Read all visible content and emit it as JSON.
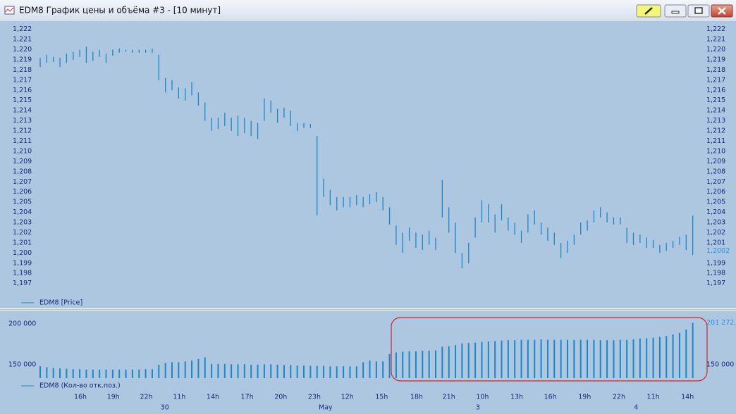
{
  "window": {
    "title": "EDM8 График цены и объёма #3 - [10 минут]"
  },
  "chart_data": [
    {
      "type": "ohlc",
      "legend": "EDM8 [Price]",
      "color": "#1b86c8",
      "ylim": [
        1.1958,
        1.2226
      ],
      "yticks": [
        {
          "value": 1.222,
          "label": "1,222"
        },
        {
          "value": 1.221,
          "label": "1,221"
        },
        {
          "value": 1.22,
          "label": "1,220"
        },
        {
          "value": 1.219,
          "label": "1,219"
        },
        {
          "value": 1.218,
          "label": "1,218"
        },
        {
          "value": 1.217,
          "label": "1,217"
        },
        {
          "value": 1.216,
          "label": "1,216"
        },
        {
          "value": 1.215,
          "label": "1,215"
        },
        {
          "value": 1.214,
          "label": "1,214"
        },
        {
          "value": 1.213,
          "label": "1,213"
        },
        {
          "value": 1.212,
          "label": "1,212"
        },
        {
          "value": 1.211,
          "label": "1,211"
        },
        {
          "value": 1.21,
          "label": "1,210"
        },
        {
          "value": 1.209,
          "label": "1,209"
        },
        {
          "value": 1.208,
          "label": "1,208"
        },
        {
          "value": 1.207,
          "label": "1,207"
        },
        {
          "value": 1.206,
          "label": "1,206"
        },
        {
          "value": 1.205,
          "label": "1,205"
        },
        {
          "value": 1.204,
          "label": "1,204"
        },
        {
          "value": 1.203,
          "label": "1,203"
        },
        {
          "value": 1.202,
          "label": "1,202"
        },
        {
          "value": 1.201,
          "label": "1,201"
        },
        {
          "value": 1.2,
          "label": "1,200"
        },
        {
          "value": 1.199,
          "label": "1,199"
        },
        {
          "value": 1.198,
          "label": "1,198"
        },
        {
          "value": 1.197,
          "label": "1,197"
        }
      ],
      "low": [
        1.2183,
        1.2187,
        1.2188,
        1.2183,
        1.2187,
        1.219,
        1.2193,
        1.2187,
        1.2189,
        1.2193,
        1.2187,
        1.2194,
        1.2197,
        1.2198,
        1.2197,
        1.2197,
        1.2197,
        1.2197,
        1.217,
        1.2158,
        1.216,
        1.2152,
        1.215,
        1.2155,
        1.2145,
        1.213,
        1.212,
        1.2122,
        1.2125,
        1.212,
        1.2115,
        1.2118,
        1.2115,
        1.2112,
        1.213,
        1.2138,
        1.2128,
        1.2133,
        1.2125,
        1.212,
        1.2123,
        1.2123,
        1.2037,
        1.2055,
        1.2047,
        1.2042,
        1.2045,
        1.2045,
        1.2047,
        1.2045,
        1.2048,
        1.205,
        1.2042,
        1.2028,
        1.2008,
        1.2,
        1.2012,
        1.2005,
        1.2003,
        1.2008,
        1.2003,
        1.2035,
        1.202,
        1.2,
        1.1985,
        1.199,
        1.2015,
        1.203,
        1.203,
        1.202,
        1.2032,
        1.2022,
        1.2018,
        1.201,
        1.202,
        1.2028,
        1.2018,
        1.2012,
        1.2008,
        1.1995,
        1.2,
        1.2008,
        1.2018,
        1.2022,
        1.203,
        1.2035,
        1.203,
        1.2028,
        1.2028,
        1.201,
        1.2008,
        1.201,
        1.2005,
        1.2005,
        1.2,
        1.2002,
        1.2005,
        1.2008,
        1.2003,
        1.1998
      ],
      "high": [
        1.2192,
        1.2195,
        1.2193,
        1.2192,
        1.2196,
        1.2198,
        1.22,
        1.2203,
        1.2198,
        1.22,
        1.2196,
        1.22,
        1.2201,
        1.22,
        1.22,
        1.22,
        1.22,
        1.2201,
        1.2195,
        1.2172,
        1.217,
        1.2163,
        1.2162,
        1.2168,
        1.2158,
        1.2148,
        1.2133,
        1.2133,
        1.2138,
        1.2133,
        1.2135,
        1.2133,
        1.213,
        1.2128,
        1.2152,
        1.215,
        1.2142,
        1.2143,
        1.214,
        1.2128,
        1.2128,
        1.2127,
        1.2115,
        1.2073,
        1.2062,
        1.2055,
        1.2055,
        1.2055,
        1.2057,
        1.2055,
        1.2058,
        1.206,
        1.2055,
        1.2045,
        1.2027,
        1.202,
        1.2025,
        1.202,
        1.2018,
        1.2022,
        1.2015,
        1.2072,
        1.2045,
        1.203,
        1.2,
        1.201,
        1.2035,
        1.2052,
        1.2048,
        1.2038,
        1.2048,
        1.2035,
        1.203,
        1.2022,
        1.2038,
        1.2042,
        1.203,
        1.2025,
        1.202,
        1.201,
        1.2012,
        1.2018,
        1.203,
        1.2032,
        1.2042,
        1.2045,
        1.204,
        1.2035,
        1.2035,
        1.2025,
        1.202,
        1.2018,
        1.2015,
        1.2013,
        1.2008,
        1.201,
        1.2012,
        1.2016,
        1.2018,
        1.2037
      ],
      "last_value": 1.2002,
      "last_label": "1,2002"
    },
    {
      "type": "bar",
      "legend": "EDM8 (Кол-во отк.поз.)",
      "color": "#1b86c8",
      "ylim": [
        133600,
        212900
      ],
      "yticks": [
        {
          "value": 200000,
          "label": "200 000"
        },
        {
          "value": 150000,
          "label": "150 000"
        }
      ],
      "values": [
        148000,
        147000,
        146000,
        145500,
        145000,
        144500,
        144500,
        144000,
        144000,
        144000,
        144000,
        144000,
        144000,
        144000,
        144000,
        144000,
        144500,
        144500,
        150000,
        152000,
        153000,
        153000,
        154000,
        155000,
        157000,
        159000,
        151000,
        151000,
        151000,
        150500,
        150500,
        150500,
        150000,
        150000,
        150500,
        150500,
        150000,
        149500,
        149500,
        149000,
        149000,
        148500,
        148500,
        148500,
        148000,
        148000,
        148000,
        148000,
        148000,
        153000,
        155000,
        154000,
        154000,
        163000,
        165000,
        166000,
        166500,
        166500,
        167000,
        167000,
        167500,
        172000,
        172500,
        174000,
        176000,
        176500,
        177000,
        178000,
        178500,
        179000,
        179500,
        180000,
        180000,
        180500,
        180500,
        180500,
        181000,
        180500,
        180500,
        180500,
        180500,
        180500,
        180500,
        180500,
        180500,
        180000,
        180000,
        180000,
        180500,
        180500,
        181000,
        182000,
        182500,
        183000,
        184000,
        185000,
        187000,
        189000,
        193000,
        201272
      ],
      "last_value": 201272,
      "last_label": "201 272,",
      "xticks": [
        {
          "value": 6.1,
          "label": "16h"
        },
        {
          "value": 11.1,
          "label": "19h"
        },
        {
          "value": 16.1,
          "label": "22h"
        },
        {
          "value": 21.1,
          "label": "11h"
        },
        {
          "value": 26.2,
          "label": "14h"
        },
        {
          "value": 31.4,
          "label": "17h"
        },
        {
          "value": 36.5,
          "label": "20h"
        },
        {
          "value": 41.6,
          "label": "23h"
        },
        {
          "value": 46.6,
          "label": "12h"
        },
        {
          "value": 51.8,
          "label": "15h"
        },
        {
          "value": 57.1,
          "label": "18h"
        },
        {
          "value": 62.0,
          "label": "21h"
        },
        {
          "value": 67.1,
          "label": "10h"
        },
        {
          "value": 72.3,
          "label": "13h"
        },
        {
          "value": 77.4,
          "label": "16h"
        },
        {
          "value": 82.6,
          "label": "19h"
        },
        {
          "value": 87.8,
          "label": "22h"
        },
        {
          "value": 93.0,
          "label": "11h"
        },
        {
          "value": 98.2,
          "label": "14h"
        }
      ],
      "date_ticks": [
        {
          "value": 18.9,
          "label": "30"
        },
        {
          "value": 43.3,
          "label": "May"
        },
        {
          "value": 66.4,
          "label": "3"
        },
        {
          "value": 90.4,
          "label": "4"
        }
      ]
    }
  ]
}
